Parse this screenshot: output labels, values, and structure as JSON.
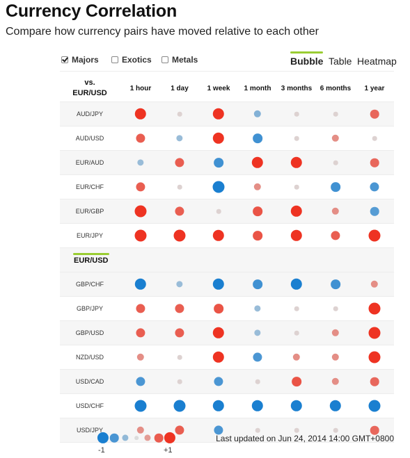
{
  "title": "Currency Correlation",
  "subtitle": "Compare how currency pairs have moved relative to each other",
  "filters": [
    {
      "label": "Majors",
      "checked": true
    },
    {
      "label": "Exotics",
      "checked": false
    },
    {
      "label": "Metals",
      "checked": false
    }
  ],
  "views": [
    {
      "label": "Bubble",
      "active": true
    },
    {
      "label": "Table",
      "active": false
    },
    {
      "label": "Heatmap",
      "active": false
    }
  ],
  "header": {
    "vs_line1": "vs.",
    "vs_line2": "EUR/USD",
    "periods": [
      "1 hour",
      "1 day",
      "1 week",
      "1 month",
      "3 months",
      "6 months",
      "1 year"
    ]
  },
  "base_pair": "EUR/USD",
  "rows_top": [
    {
      "pair": "AUD/JPY",
      "values": [
        0.95,
        0.05,
        0.95,
        -0.4,
        0.05,
        0.05,
        0.6
      ]
    },
    {
      "pair": "AUD/USD",
      "values": [
        0.65,
        -0.3,
        0.95,
        -0.7,
        0.05,
        0.4,
        0.05
      ]
    },
    {
      "pair": "EUR/AUD",
      "values": [
        -0.3,
        0.65,
        -0.7,
        0.95,
        0.95,
        0.05,
        0.6
      ]
    },
    {
      "pair": "EUR/CHF",
      "values": [
        0.65,
        0.05,
        -1.0,
        0.4,
        0.05,
        -0.7,
        -0.65
      ]
    },
    {
      "pair": "EUR/GBP",
      "values": [
        1.0,
        0.65,
        0.05,
        0.7,
        0.95,
        0.4,
        -0.6
      ]
    },
    {
      "pair": "EUR/JPY",
      "values": [
        1.0,
        1.0,
        0.95,
        0.7,
        0.95,
        0.65,
        1.0
      ]
    }
  ],
  "rows_bottom": [
    {
      "pair": "GBP/CHF",
      "values": [
        -0.95,
        -0.3,
        -0.95,
        -0.7,
        -0.95,
        -0.7,
        0.4
      ]
    },
    {
      "pair": "GBP/JPY",
      "values": [
        0.65,
        0.65,
        0.7,
        -0.3,
        0.05,
        0.05,
        1.0
      ]
    },
    {
      "pair": "GBP/USD",
      "values": [
        0.65,
        0.65,
        0.95,
        -0.3,
        0.05,
        0.4,
        1.0
      ]
    },
    {
      "pair": "NZD/USD",
      "values": [
        0.4,
        0.05,
        0.95,
        -0.65,
        0.4,
        0.4,
        1.0
      ]
    },
    {
      "pair": "USD/CAD",
      "values": [
        -0.65,
        0.05,
        -0.65,
        0.05,
        0.7,
        0.4,
        0.6
      ]
    },
    {
      "pair": "USD/CHF",
      "values": [
        -1.0,
        -1.0,
        -0.95,
        -0.95,
        -0.95,
        -0.95,
        -1.0
      ]
    },
    {
      "pair": "USD/JPY",
      "values": [
        0.4,
        0.65,
        -0.65,
        0.05,
        0.05,
        0.05,
        0.6
      ]
    }
  ],
  "legend": {
    "min_label": "-1",
    "max_label": "+1",
    "steps": [
      -1.0,
      -0.66,
      -0.33,
      0.0,
      0.33,
      0.66,
      1.0
    ]
  },
  "last_updated": "Last updated on Jun 24, 2014 14:00 GMT+0800",
  "colors": {
    "negative": "#1a7fd0",
    "positive": "#ee3322",
    "neutral": "#dcdcdc"
  }
}
